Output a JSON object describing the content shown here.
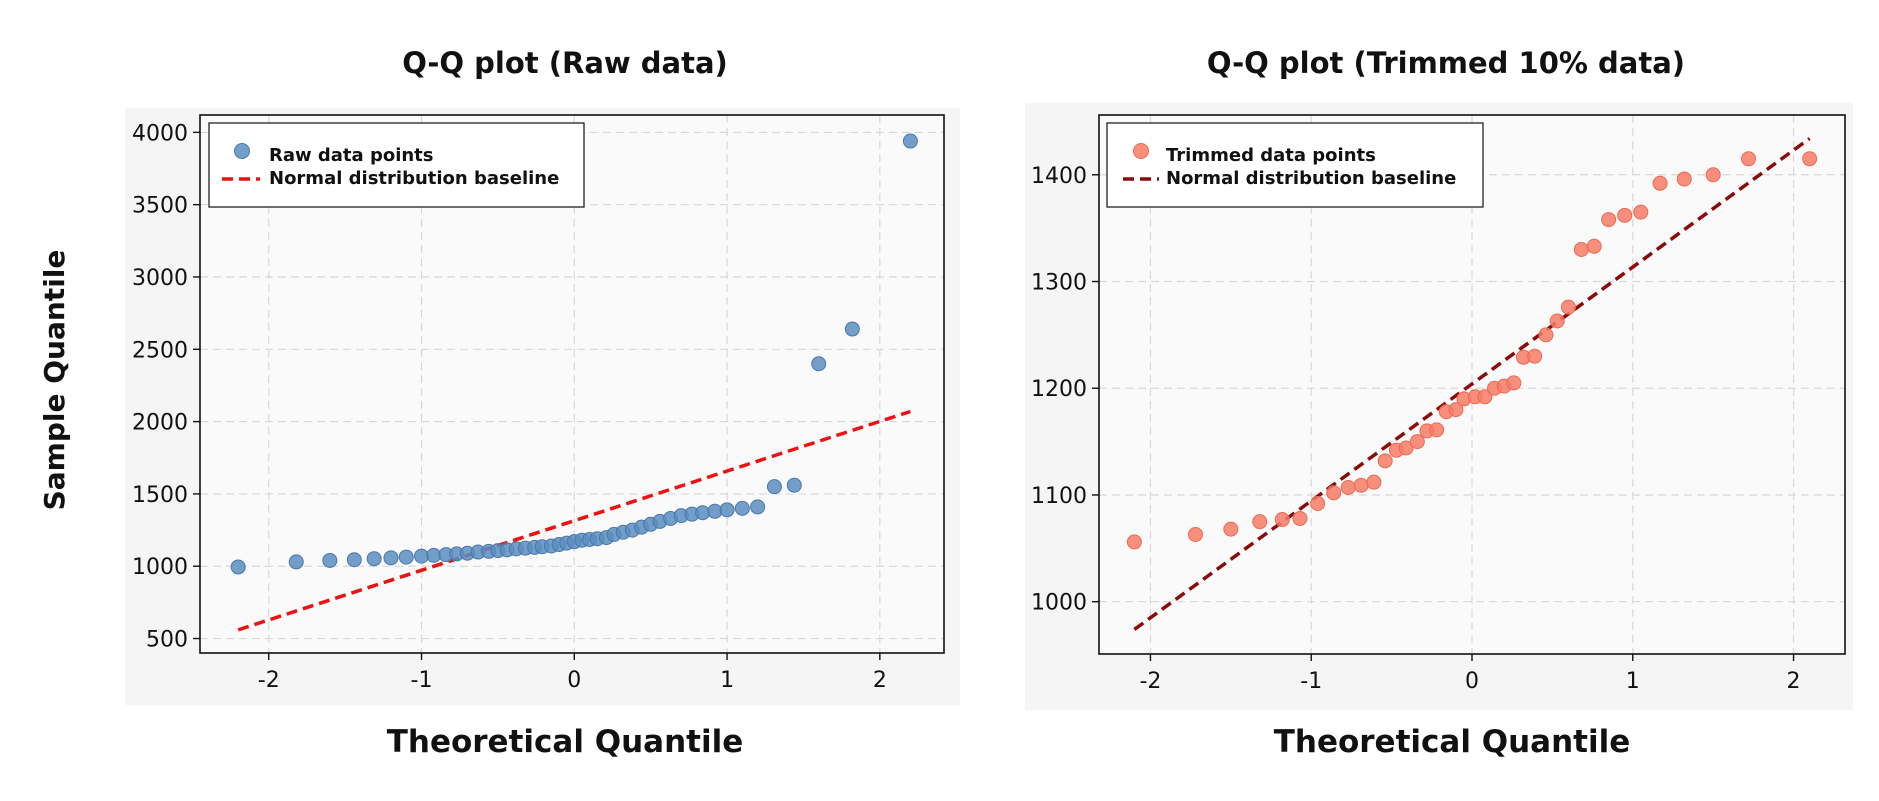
{
  "figure": {
    "ylabel": "Sample Quantile"
  },
  "chart_data": [
    {
      "type": "scatter",
      "title": "Q-Q plot (Raw data)",
      "xlabel": "Theoretical Quantile",
      "ylabel": "Sample Quantile",
      "xlim": [
        -2.45,
        2.42
      ],
      "ylim": [
        400,
        4120
      ],
      "xticks": [
        -2,
        -1,
        0,
        1,
        2
      ],
      "xtick_labels": [
        "-2",
        "-1",
        "0",
        "1",
        "2"
      ],
      "yticks": [
        500,
        1000,
        1500,
        2000,
        2500,
        3000,
        3500,
        4000
      ],
      "ytick_labels": [
        "500",
        "1000",
        "1500",
        "2000",
        "2500",
        "3000",
        "3500",
        "4000"
      ],
      "grid": true,
      "legend_position": "top-left",
      "series": [
        {
          "name": "Raw data points",
          "kind": "scatter",
          "color": "#5b8dbf",
          "x": [
            -2.2,
            -1.82,
            -1.6,
            -1.44,
            -1.31,
            -1.2,
            -1.1,
            -1.0,
            -0.92,
            -0.84,
            -0.77,
            -0.7,
            -0.63,
            -0.56,
            -0.5,
            -0.44,
            -0.38,
            -0.32,
            -0.26,
            -0.21,
            -0.15,
            -0.1,
            -0.05,
            0.0,
            0.05,
            0.1,
            0.15,
            0.21,
            0.26,
            0.32,
            0.38,
            0.44,
            0.5,
            0.56,
            0.63,
            0.7,
            0.77,
            0.84,
            0.92,
            1.0,
            1.1,
            1.2,
            1.31,
            1.44,
            1.6,
            1.82,
            2.2
          ],
          "y": [
            995,
            1030,
            1040,
            1045,
            1052,
            1058,
            1063,
            1070,
            1075,
            1080,
            1085,
            1090,
            1098,
            1103,
            1108,
            1113,
            1120,
            1125,
            1130,
            1135,
            1140,
            1150,
            1160,
            1170,
            1180,
            1185,
            1190,
            1198,
            1220,
            1235,
            1250,
            1270,
            1290,
            1310,
            1330,
            1350,
            1360,
            1370,
            1380,
            1390,
            1400,
            1410,
            1550,
            1560,
            2400,
            2640,
            3940
          ]
        },
        {
          "name": "Normal distribution baseline",
          "kind": "line",
          "style": "dashed",
          "color": "#ee1111",
          "x": [
            -2.2,
            2.2
          ],
          "y": [
            560,
            2070
          ]
        }
      ]
    },
    {
      "type": "scatter",
      "title": "Q-Q plot (Trimmed 10% data)",
      "xlabel": "Theoretical Quantile",
      "ylabel": "",
      "xlim": [
        -2.32,
        2.32
      ],
      "ylim": [
        951,
        1456
      ],
      "xticks": [
        -2,
        -1,
        0,
        1,
        2
      ],
      "xtick_labels": [
        "-2",
        "-1",
        "0",
        "1",
        "2"
      ],
      "yticks": [
        1000,
        1100,
        1200,
        1300,
        1400
      ],
      "ytick_labels": [
        "1000",
        "1100",
        "1200",
        "1300",
        "1400"
      ],
      "grid": true,
      "legend_position": "top-left",
      "series": [
        {
          "name": "Trimmed data points",
          "kind": "scatter",
          "color": "#f77b66",
          "x": [
            -2.1,
            -1.72,
            -1.5,
            -1.32,
            -1.18,
            -1.07,
            -0.96,
            -0.86,
            -0.77,
            -0.69,
            -0.61,
            -0.54,
            -0.47,
            -0.41,
            -0.34,
            -0.28,
            -0.22,
            -0.16,
            -0.1,
            -0.05,
            0.02,
            0.08,
            0.14,
            0.2,
            0.26,
            0.32,
            0.39,
            0.46,
            0.53,
            0.6,
            0.68,
            0.76,
            0.85,
            0.95,
            1.05,
            1.17,
            1.32,
            1.5,
            1.72,
            2.1
          ],
          "y": [
            1056,
            1063,
            1068,
            1075,
            1077,
            1078,
            1092,
            1102,
            1107,
            1109,
            1112,
            1132,
            1142,
            1144,
            1150,
            1160,
            1161,
            1178,
            1180,
            1190,
            1192,
            1192,
            1200,
            1202,
            1205,
            1229,
            1230,
            1250,
            1263,
            1276,
            1330,
            1333,
            1358,
            1362,
            1365,
            1392,
            1396,
            1400,
            1415,
            1415
          ]
        },
        {
          "name": "Normal distribution baseline",
          "kind": "line",
          "style": "dashed",
          "color": "#8b0a0a",
          "x": [
            -2.1,
            2.1
          ],
          "y": [
            974,
            1434
          ]
        }
      ]
    }
  ]
}
